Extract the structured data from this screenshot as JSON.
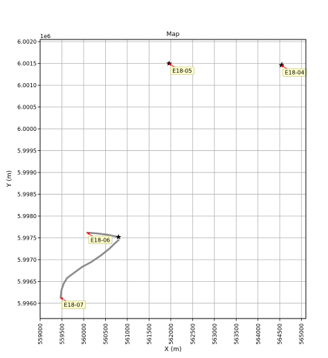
{
  "chart_data": {
    "type": "line",
    "title": "Map",
    "xlabel": "X (m)",
    "ylabel": "Y (m)",
    "y_offset_label": "1e6",
    "xlim": [
      559000,
      565100
    ],
    "ylim": [
      5995650,
      6002050
    ],
    "grid": true,
    "x_ticks": [
      559000,
      559500,
      560000,
      560500,
      561000,
      561500,
      562000,
      562500,
      563000,
      563500,
      564000,
      564500,
      565000
    ],
    "x_tick_labels": [
      "559000",
      "559500",
      "560000",
      "560500",
      "561000",
      "561500",
      "562000",
      "562500",
      "563000",
      "563500",
      "564000",
      "564500",
      "565000"
    ],
    "y_ticks": [
      5996000,
      5996500,
      5997000,
      5997500,
      5998000,
      5998500,
      5999000,
      5999500,
      6000000,
      6000500,
      6001000,
      6001500,
      6002000
    ],
    "y_tick_labels": [
      "5.9960",
      "5.9965",
      "5.9970",
      "5.9975",
      "5.9980",
      "5.9985",
      "5.9990",
      "5.9995",
      "6.0000",
      "6.0005",
      "6.0010",
      "6.0015",
      "6.0020"
    ],
    "series": [
      {
        "name": "E18-07",
        "label_text": "E18-07",
        "track": [
          [
            559470,
            5996130
          ],
          [
            559490,
            5996300
          ],
          [
            559540,
            5996450
          ],
          [
            559620,
            5996580
          ],
          [
            559780,
            5996700
          ],
          [
            559960,
            5996830
          ],
          [
            560180,
            5996950
          ],
          [
            560400,
            5997100
          ],
          [
            560600,
            5997260
          ],
          [
            560720,
            5997380
          ],
          [
            560800,
            5997450
          ]
        ],
        "start": [
          559470,
          5996130
        ],
        "end": [
          560800,
          5997520
        ]
      },
      {
        "name": "E18-06",
        "label_text": "E18-06",
        "track": [
          [
            560080,
            5997620
          ],
          [
            560320,
            5997600
          ],
          [
            560560,
            5997570
          ],
          [
            560700,
            5997540
          ],
          [
            560800,
            5997520
          ]
        ],
        "start": [
          560080,
          5997620
        ],
        "end": [
          560800,
          5997520
        ]
      },
      {
        "name": "E18-05",
        "label_text": "E18-05",
        "track": [
          [
            561960,
            6001500
          ],
          [
            561990,
            6001490
          ]
        ],
        "start": [
          561960,
          6001500
        ],
        "end": [
          561960,
          6001500
        ]
      },
      {
        "name": "E18-04",
        "label_text": "E18-04",
        "track": [
          [
            564540,
            6001460
          ],
          [
            564560,
            6001510
          ]
        ],
        "start": [
          564540,
          6001460
        ],
        "end": [
          564540,
          6001460
        ]
      }
    ],
    "colors": {
      "track": "#808080",
      "arrow": "#ff0000",
      "marker": "#000000",
      "label_bg": "#ffffcc",
      "label_border": "#b8b870",
      "grid": "#b0b0b0"
    }
  }
}
